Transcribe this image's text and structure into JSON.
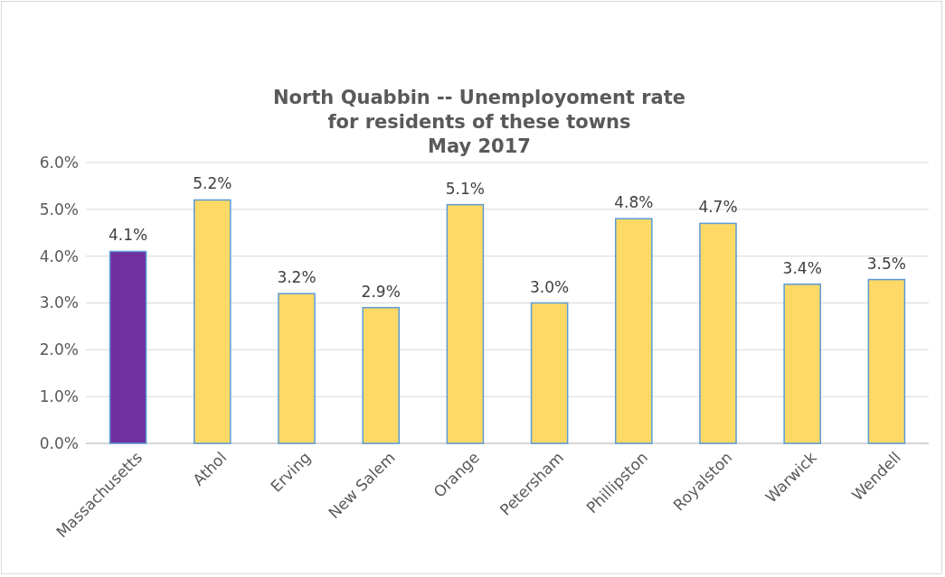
{
  "chart_data": {
    "type": "bar",
    "title": "North Quabbin -- Unemployoment rate\nfor residents of these towns\nMay 2017",
    "categories": [
      "Massachusetts",
      "Athol",
      "Erving",
      "New Salem",
      "Orange",
      "Petersham",
      "Phillipston",
      "Royalston",
      "Warwick",
      "Wendell"
    ],
    "values": [
      4.1,
      5.2,
      3.2,
      2.9,
      5.1,
      3.0,
      4.8,
      4.7,
      3.4,
      3.5
    ],
    "colors": [
      "#7030a0",
      "#ffd966",
      "#ffd966",
      "#ffd966",
      "#ffd966",
      "#ffd966",
      "#ffd966",
      "#ffd966",
      "#ffd966",
      "#ffd966"
    ],
    "value_labels": [
      "4.1%",
      "5.2%",
      "3.2%",
      "2.9%",
      "5.1%",
      "3.0%",
      "4.8%",
      "4.7%",
      "3.4%",
      "3.5%"
    ],
    "ylim": [
      0,
      6
    ],
    "yticks": [
      {
        "value": 0,
        "label": "0.0%"
      },
      {
        "value": 1,
        "label": "1.0%"
      },
      {
        "value": 2,
        "label": "2.0%"
      },
      {
        "value": 3,
        "label": "3.0%"
      },
      {
        "value": 4,
        "label": "4.0%"
      },
      {
        "value": 5,
        "label": "5.0%"
      },
      {
        "value": 6,
        "label": "6.0%"
      }
    ],
    "grid": "y"
  }
}
